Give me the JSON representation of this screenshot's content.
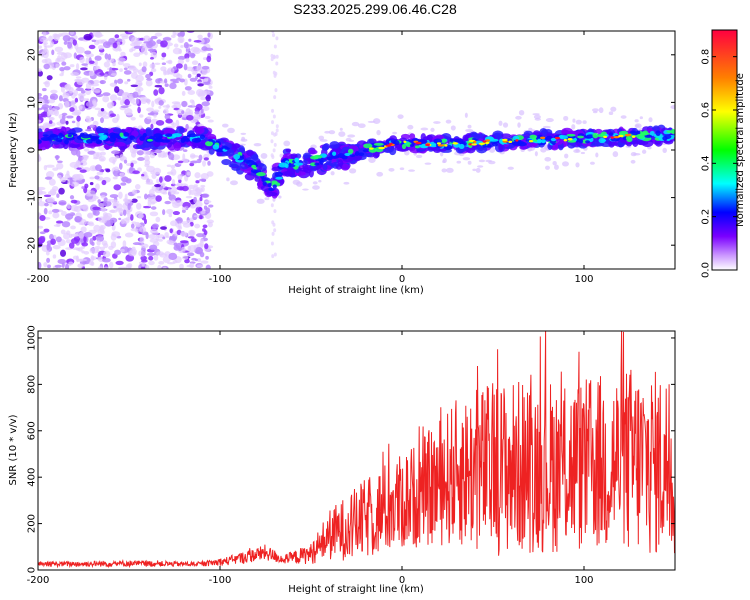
{
  "title": "S233.2025.299.06.46.C28",
  "chart_data": [
    {
      "type": "heatmap",
      "xlabel": "Height of straight line (km)",
      "ylabel": "Frequency (Hz)",
      "xlim": [
        -200,
        150
      ],
      "ylim": [
        -25,
        25
      ],
      "xticks": [
        -200,
        -100,
        0,
        100
      ],
      "yticks": [
        -20,
        -10,
        0,
        10,
        20
      ],
      "colorbar": {
        "label": "Normalized spectral amplitude",
        "range": [
          0,
          0.9
        ],
        "ticks": [
          0.0,
          0.2,
          0.4,
          0.6,
          0.8
        ],
        "colors": [
          "#ffffff",
          "#cc99ff",
          "#7a00ff",
          "#0000ff",
          "#00ffff",
          "#00ff00",
          "#ffff00",
          "#ff8000",
          "#ff0040"
        ]
      },
      "ridge": [
        {
          "x": -190,
          "f": 2.5
        },
        {
          "x": -150,
          "f": 2.5
        },
        {
          "x": -110,
          "f": 2.5
        },
        {
          "x": -100,
          "f": 0.5
        },
        {
          "x": -90,
          "f": -1.5
        },
        {
          "x": -80,
          "f": -4.0
        },
        {
          "x": -72,
          "f": -8.5
        },
        {
          "x": -64,
          "f": -2.5
        },
        {
          "x": -55,
          "f": -3.0
        },
        {
          "x": -45,
          "f": -2.0
        },
        {
          "x": -30,
          "f": -1.0
        },
        {
          "x": -15,
          "f": 0.5
        },
        {
          "x": 0,
          "f": 1.5
        },
        {
          "x": 25,
          "f": 1.3
        },
        {
          "x": 50,
          "f": 1.7
        },
        {
          "x": 75,
          "f": 2.2
        },
        {
          "x": 100,
          "f": 2.4
        },
        {
          "x": 125,
          "f": 2.8
        },
        {
          "x": 150,
          "f": 3.2
        }
      ]
    },
    {
      "type": "line",
      "xlabel": "Height of straight line (km)",
      "ylabel": "SNR (10 * v/v)",
      "xlim": [
        -200,
        150
      ],
      "ylim": [
        0,
        1030
      ],
      "xticks": [
        -200,
        -100,
        0,
        100
      ],
      "yticks": [
        0,
        200,
        400,
        600,
        800,
        1000
      ],
      "color": "#ee2222",
      "envelope": [
        {
          "x": -200,
          "mean": 25,
          "amp": 10
        },
        {
          "x": -150,
          "mean": 28,
          "amp": 14
        },
        {
          "x": -110,
          "mean": 25,
          "amp": 10
        },
        {
          "x": -95,
          "mean": 40,
          "amp": 20
        },
        {
          "x": -75,
          "mean": 75,
          "amp": 35
        },
        {
          "x": -65,
          "mean": 45,
          "amp": 20
        },
        {
          "x": -50,
          "mean": 70,
          "amp": 45
        },
        {
          "x": -40,
          "mean": 150,
          "amp": 110
        },
        {
          "x": -25,
          "mean": 200,
          "amp": 160
        },
        {
          "x": -10,
          "mean": 260,
          "amp": 200
        },
        {
          "x": 10,
          "mean": 330,
          "amp": 230
        },
        {
          "x": 30,
          "mean": 420,
          "amp": 320
        },
        {
          "x": 50,
          "mean": 440,
          "amp": 380
        },
        {
          "x": 75,
          "mean": 450,
          "amp": 380
        },
        {
          "x": 100,
          "mean": 450,
          "amp": 380
        },
        {
          "x": 125,
          "mean": 470,
          "amp": 420
        },
        {
          "x": 150,
          "mean": 450,
          "amp": 400
        }
      ]
    }
  ]
}
